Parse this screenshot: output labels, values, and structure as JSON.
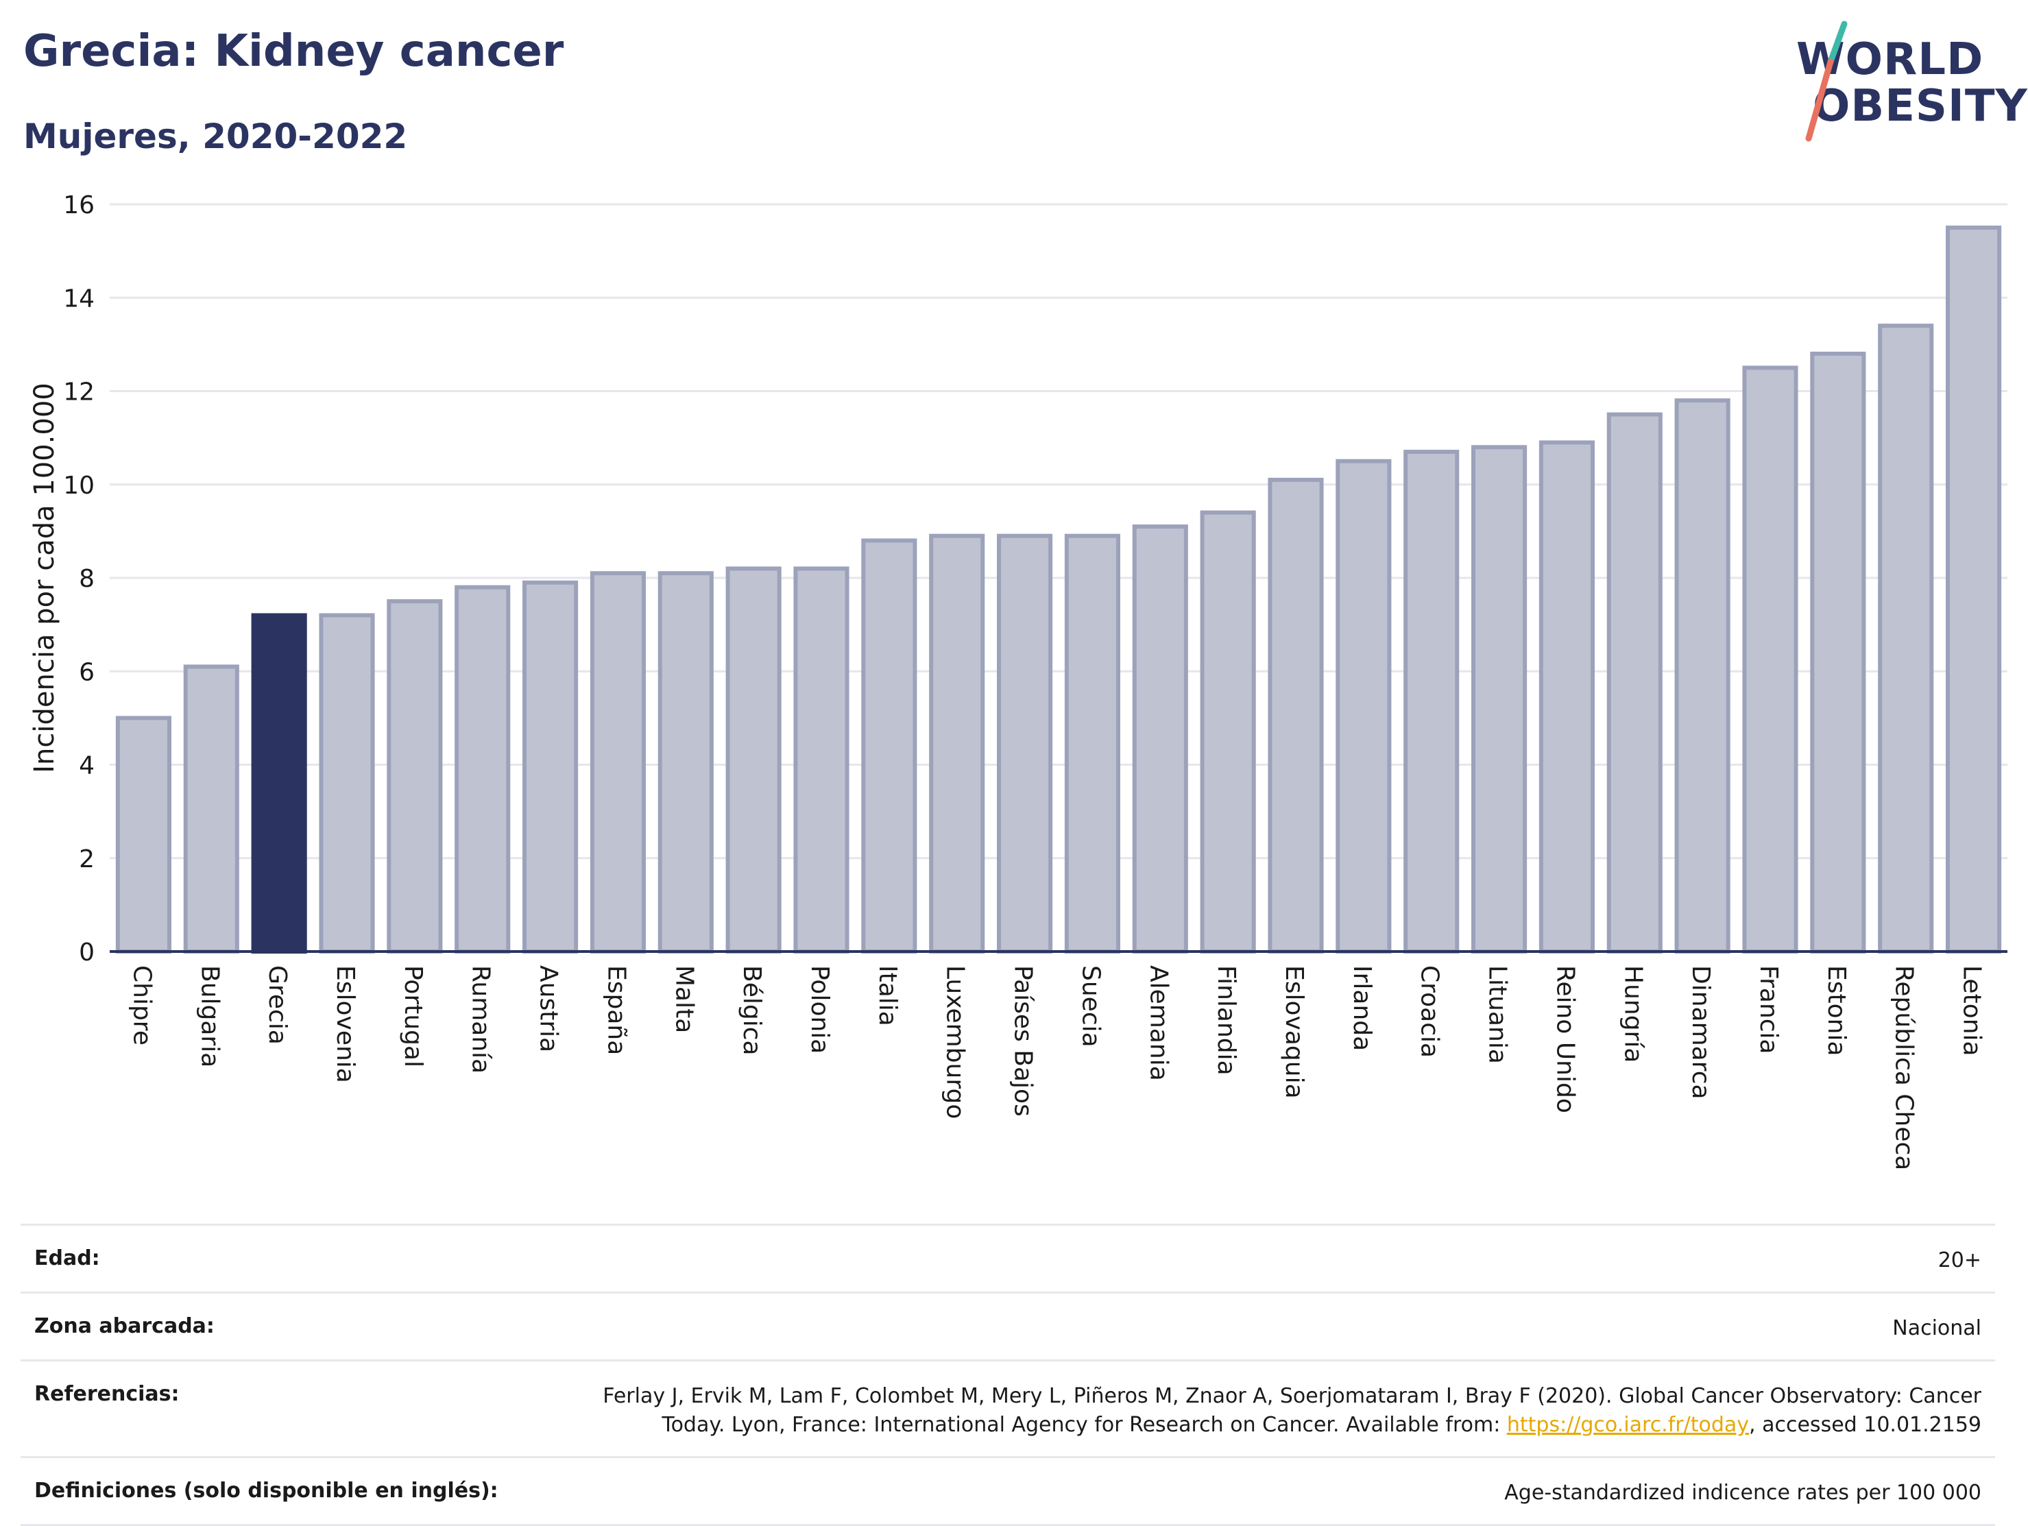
{
  "title": "Grecia: Kidney cancer",
  "subtitle": "Mujeres, 2020-2022",
  "logo": {
    "line1": "WORLD",
    "line2": "OBESITY"
  },
  "colors": {
    "highlight": "#2b3461",
    "bar_fill": "#bfc2d0",
    "bar_stroke": "#9da2bb",
    "grid": "#e6e6ec",
    "axis": "#2b3461"
  },
  "chart_data": {
    "type": "bar",
    "title": "Grecia: Kidney cancer",
    "subtitle": "Mujeres, 2020-2022",
    "ylabel": "Incidencia por cada 100.000",
    "ylim": [
      0,
      16
    ],
    "yticks": [
      0,
      2,
      4,
      6,
      8,
      10,
      12,
      14,
      16
    ],
    "grid": true,
    "highlight": "Grecia",
    "categories": [
      "Chipre",
      "Bulgaria",
      "Grecia",
      "Eslovenia",
      "Portugal",
      "Rumanía",
      "Austria",
      "España",
      "Malta",
      "Bélgica",
      "Polonia",
      "Italia",
      "Luxemburgo",
      "Países Bajos",
      "Suecia",
      "Alemania",
      "Finlandia",
      "Eslovaquia",
      "Irlanda",
      "Croacia",
      "Lituania",
      "Reino Unido",
      "Hungría",
      "Dinamarca",
      "Francia",
      "Estonia",
      "República Checa",
      "Letonia"
    ],
    "values": [
      5.0,
      6.1,
      7.2,
      7.2,
      7.5,
      7.8,
      7.9,
      8.1,
      8.1,
      8.2,
      8.2,
      8.8,
      8.9,
      8.9,
      8.9,
      9.1,
      9.4,
      10.1,
      10.5,
      10.7,
      10.8,
      10.9,
      11.5,
      11.8,
      12.5,
      12.8,
      13.4,
      15.5
    ]
  },
  "info": [
    {
      "label": "Edad:",
      "value": "20+"
    },
    {
      "label": "Zona abarcada:",
      "value": "Nacional"
    },
    {
      "label": "Referencias:",
      "value_pre": "Ferlay J, Ervik M, Lam F, Colombet M, Mery L, Piñeros M, Znaor A, Soerjomataram I, Bray F (2020). Global Cancer Observatory: Cancer Today. Lyon, France: International Agency for Research on Cancer. Available from: ",
      "link": "https://gco.iarc.fr/today",
      "value_post": ", accessed 10.01.2159"
    },
    {
      "label": "Definiciones (solo disponible en inglés):",
      "value": "Age-standardized indicence rates per 100 000"
    }
  ]
}
